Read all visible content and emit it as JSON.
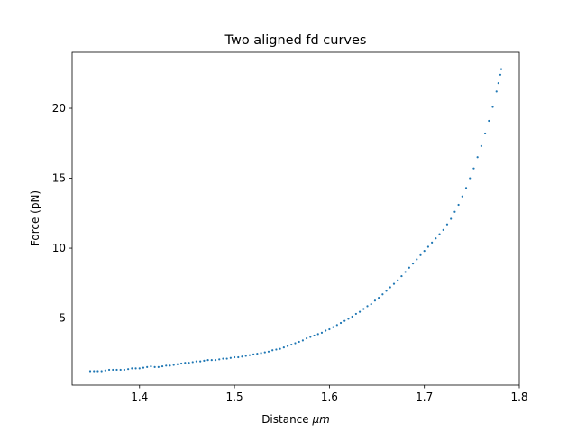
{
  "chart_data": {
    "type": "scatter",
    "title": "Two aligned fd curves",
    "xlabel_prefix": "Distance ",
    "xlabel_unit": "μm",
    "ylabel": "Force (pN)",
    "xlim": [
      1.329,
      1.8
    ],
    "ylim": [
      0.2,
      24.0
    ],
    "xticks": [
      1.4,
      1.5,
      1.6,
      1.7,
      1.8
    ],
    "xtick_labels": [
      "1.4",
      "1.5",
      "1.6",
      "1.7",
      "1.8"
    ],
    "yticks": [
      5,
      10,
      15,
      20
    ],
    "ytick_labels": [
      "5",
      "10",
      "15",
      "20"
    ],
    "grid": false,
    "marker_color": "#1f77b4",
    "series": [
      {
        "x": [
          1.348,
          1.352,
          1.356,
          1.36,
          1.364,
          1.368,
          1.372,
          1.376,
          1.38,
          1.384,
          1.388,
          1.392,
          1.396,
          1.4,
          1.404,
          1.408,
          1.412,
          1.416,
          1.42,
          1.424,
          1.428,
          1.432,
          1.436,
          1.44,
          1.444,
          1.448,
          1.452,
          1.456,
          1.46,
          1.464,
          1.468,
          1.472,
          1.476,
          1.48,
          1.484,
          1.488,
          1.492,
          1.496,
          1.5,
          1.504,
          1.508,
          1.512,
          1.516,
          1.52,
          1.524,
          1.528,
          1.532,
          1.536,
          1.54,
          1.544,
          1.548,
          1.552,
          1.556,
          1.56,
          1.564,
          1.568,
          1.572,
          1.576,
          1.58,
          1.584,
          1.588,
          1.592,
          1.596,
          1.6,
          1.604,
          1.608,
          1.612,
          1.616,
          1.62,
          1.624,
          1.628,
          1.632,
          1.636,
          1.64,
          1.644,
          1.648,
          1.652,
          1.656,
          1.66,
          1.664,
          1.668,
          1.672,
          1.676,
          1.68,
          1.684,
          1.688,
          1.692,
          1.696,
          1.7,
          1.704,
          1.708,
          1.712,
          1.716,
          1.72,
          1.724,
          1.728,
          1.732,
          1.736,
          1.74,
          1.744,
          1.748,
          1.752,
          1.756,
          1.76,
          1.764,
          1.768,
          1.772,
          1.776,
          1.778,
          1.78,
          1.781
        ],
        "y": [
          1.2,
          1.2,
          1.2,
          1.2,
          1.25,
          1.3,
          1.3,
          1.3,
          1.3,
          1.3,
          1.35,
          1.4,
          1.4,
          1.4,
          1.45,
          1.5,
          1.55,
          1.5,
          1.5,
          1.55,
          1.6,
          1.6,
          1.65,
          1.7,
          1.75,
          1.8,
          1.8,
          1.85,
          1.9,
          1.9,
          1.95,
          2.0,
          2.0,
          2.0,
          2.05,
          2.1,
          2.1,
          2.15,
          2.2,
          2.2,
          2.25,
          2.3,
          2.35,
          2.4,
          2.45,
          2.5,
          2.55,
          2.6,
          2.7,
          2.75,
          2.8,
          2.9,
          3.0,
          3.1,
          3.2,
          3.3,
          3.4,
          3.55,
          3.65,
          3.75,
          3.85,
          3.95,
          4.1,
          4.2,
          4.35,
          4.5,
          4.65,
          4.8,
          4.95,
          5.1,
          5.3,
          5.45,
          5.65,
          5.85,
          6.0,
          6.25,
          6.45,
          6.7,
          6.95,
          7.2,
          7.45,
          7.7,
          8.0,
          8.3,
          8.6,
          8.9,
          9.2,
          9.5,
          9.8,
          10.1,
          10.4,
          10.7,
          11.0,
          11.3,
          11.7,
          12.1,
          12.6,
          13.1,
          13.7,
          14.3,
          15.0,
          15.7,
          16.5,
          17.3,
          18.2,
          19.1,
          20.1,
          21.2,
          21.8,
          22.4,
          22.8
        ]
      }
    ]
  }
}
